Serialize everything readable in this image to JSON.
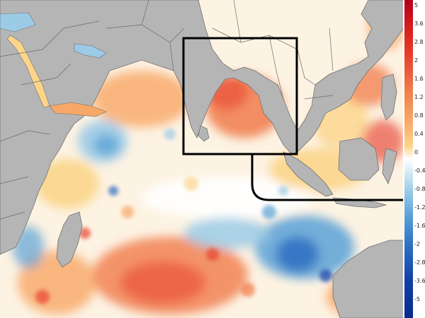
{
  "map": {
    "colorbar": {
      "ticks": [
        "5",
        "3.6",
        "2.8",
        "2",
        "1.6",
        "1.2",
        "0.8",
        "0.4",
        "0",
        "-0.4",
        "-0.8",
        "-1.2",
        "-1.6",
        "-2",
        "-2.8",
        "-3.6",
        "-5"
      ]
    },
    "colors": {
      "land": "#b5b5b5",
      "border": "#707070",
      "warm": "#f07b4a",
      "cool": "#2b6cc0",
      "highlight_box": "#000000"
    }
  }
}
